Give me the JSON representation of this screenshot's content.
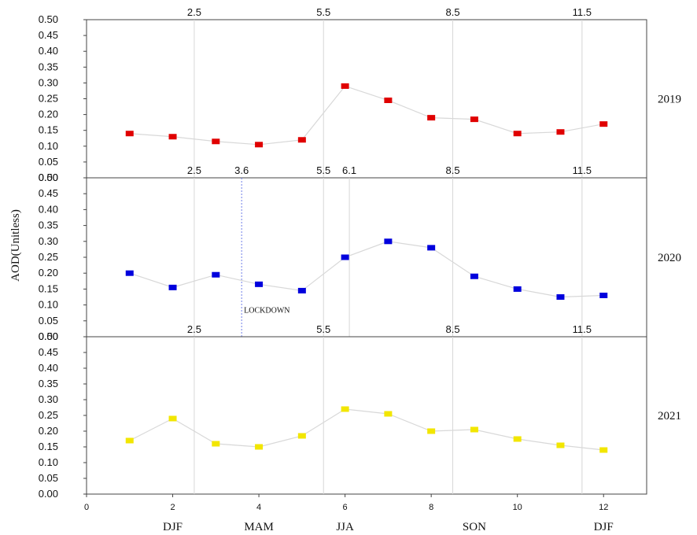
{
  "chart_data": {
    "type": "line",
    "ylabel": "AOD(Unitless)",
    "x_ticks": [
      "0",
      "2",
      "4",
      "6",
      "8",
      "10",
      "12"
    ],
    "x_range": [
      0,
      13
    ],
    "ylim": [
      0,
      0.5
    ],
    "y_ticks_top_panel": [
      "0.00",
      "0.05",
      "0.10",
      "0.15",
      "0.20",
      "0.25",
      "0.30",
      "0.35",
      "0.40",
      "0.45",
      "0.50"
    ],
    "y_ticks_lower_panels": [
      "0.00",
      "0.05",
      "0.10",
      "0.15",
      "0.20",
      "0.25",
      "0.30",
      "0.35",
      "0.40",
      "0.45",
      "0.50"
    ],
    "season_labels": [
      {
        "label": "DJF",
        "x": 2
      },
      {
        "label": "MAM",
        "x": 4
      },
      {
        "label": "JJA",
        "x": 6
      },
      {
        "label": "SON",
        "x": 9
      },
      {
        "label": "DJF",
        "x": 12
      }
    ],
    "grid": "vertical lines at season boundaries",
    "panels": [
      {
        "year_label": "2019",
        "color": "#e00000",
        "boundary_labels": [
          "2.5",
          "5.5",
          "8.5",
          "11.5"
        ],
        "boundary_x": [
          2.5,
          5.5,
          8.5,
          11.5
        ],
        "x": [
          1,
          2,
          3,
          4,
          5,
          6,
          7,
          8,
          9,
          10,
          11,
          12
        ],
        "values": [
          0.14,
          0.13,
          0.115,
          0.105,
          0.12,
          0.29,
          0.245,
          0.19,
          0.185,
          0.14,
          0.145,
          0.17
        ]
      },
      {
        "year_label": "2020",
        "color": "#0000dd",
        "boundary_labels": [
          "2.5",
          "3.6",
          "5.5",
          "6.1",
          "8.5",
          "11.5"
        ],
        "boundary_x": [
          2.5,
          3.6,
          5.5,
          6.1,
          8.5,
          11.5
        ],
        "lockdown_x": 3.6,
        "annotation": "LOCKDOWN",
        "x": [
          1,
          2,
          3,
          4,
          5,
          6,
          7,
          8,
          9,
          10,
          11,
          12
        ],
        "values": [
          0.2,
          0.155,
          0.195,
          0.165,
          0.145,
          0.25,
          0.3,
          0.28,
          0.19,
          0.15,
          0.125,
          0.13
        ]
      },
      {
        "year_label": "2021",
        "color": "#f2e600",
        "boundary_labels": [
          "2.5",
          "5.5",
          "8.5",
          "11.5"
        ],
        "boundary_x": [
          2.5,
          5.5,
          8.5,
          11.5
        ],
        "x": [
          1,
          2,
          3,
          4,
          5,
          6,
          7,
          8,
          9,
          10,
          11,
          12
        ],
        "values": [
          0.17,
          0.24,
          0.16,
          0.15,
          0.185,
          0.27,
          0.255,
          0.2,
          0.205,
          0.175,
          0.155,
          0.14
        ]
      }
    ]
  }
}
